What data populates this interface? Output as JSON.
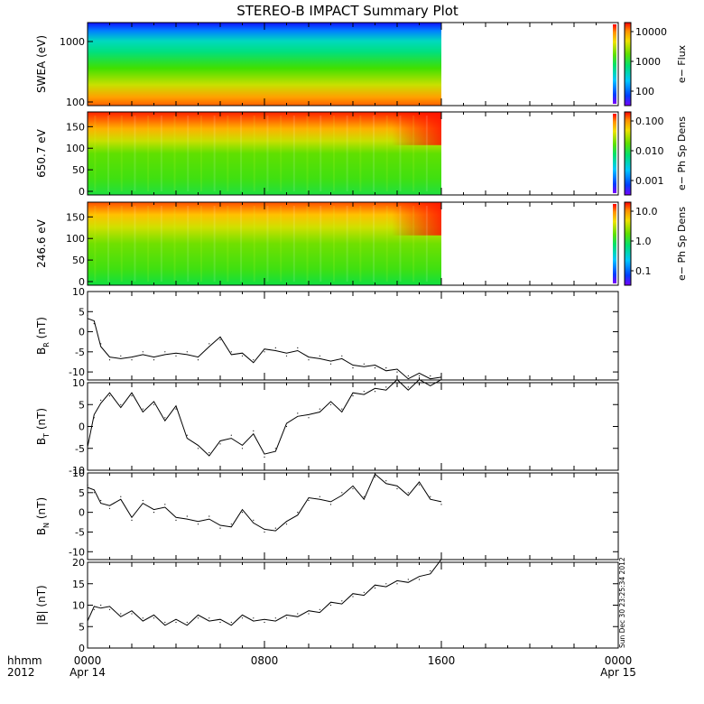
{
  "title": "STEREO-B IMPACT Summary Plot",
  "timestamp": "Sun Dec 30 23:25:34 2012",
  "x_axis": {
    "label_rows": [
      "hhmm",
      "2012"
    ],
    "ticks": [
      {
        "t": 0,
        "time": "0000",
        "date": "Apr 14"
      },
      {
        "t": 8,
        "time": "0800",
        "date": ""
      },
      {
        "t": 16,
        "time": "1600",
        "date": ""
      },
      {
        "t": 24,
        "time": "0000",
        "date": "Apr 15"
      }
    ],
    "range_hours": [
      0,
      24
    ]
  },
  "chart_data": [
    {
      "type": "heatmap",
      "ylabel": "SWEA (eV)",
      "ylog": true,
      "yticks": [
        "100",
        "1000"
      ],
      "colorbar": {
        "label": "e− Flux",
        "ticks": [
          "100",
          "1000",
          "10000"
        ]
      },
      "data_end_hour": 16,
      "description_colors": "high energy blue/cyan, low energy orange/red"
    },
    {
      "type": "heatmap",
      "ylabel": "650.7 eV",
      "yticks": [
        "0",
        "50",
        "100",
        "150"
      ],
      "ylim": [
        0,
        180
      ],
      "colorbar": {
        "label": "e− Ph Sp Dens",
        "ticks": [
          "0.001",
          "0.010",
          "0.100"
        ]
      },
      "data_end_hour": 16
    },
    {
      "type": "heatmap",
      "ylabel": "246.6 eV",
      "yticks": [
        "0",
        "50",
        "100",
        "150"
      ],
      "ylim": [
        0,
        180
      ],
      "colorbar": {
        "label": "e− Ph Sp Dens",
        "ticks": [
          "0.1",
          "1.0",
          "10.0"
        ]
      },
      "data_end_hour": 16
    },
    {
      "type": "line",
      "ylabel": "B",
      "ylabel_sub": "R",
      "yunit": "(nT)",
      "ylim": [
        -12,
        10
      ],
      "yticks": [
        "-10",
        "-5",
        "0",
        "5",
        "10"
      ],
      "x": [
        0,
        0.3,
        0.6,
        1,
        1.5,
        2,
        2.5,
        3,
        3.5,
        4,
        4.5,
        5,
        5.5,
        6,
        6.5,
        7,
        7.5,
        8,
        8.5,
        9,
        9.5,
        10,
        10.5,
        11,
        11.5,
        12,
        12.5,
        13,
        13.5,
        14,
        14.5,
        15,
        15.5,
        16
      ],
      "y": [
        4,
        2,
        -3,
        -7,
        -6,
        -7,
        -5,
        -7,
        -5,
        -6,
        -5,
        -7,
        -3,
        -2,
        -5,
        -6,
        -7,
        -5,
        -4,
        -6,
        -4,
        -7,
        -6,
        -8,
        -6,
        -9,
        -8,
        -9,
        -9,
        -10,
        -11,
        -11,
        -11,
        -12
      ]
    },
    {
      "type": "line",
      "ylabel": "B",
      "ylabel_sub": "T",
      "yunit": "(nT)",
      "ylim": [
        -10,
        10
      ],
      "yticks": [
        "-10",
        "-5",
        "0",
        "5",
        "10"
      ],
      "x": [
        0,
        0.3,
        0.6,
        1,
        1.5,
        2,
        2.5,
        3,
        3.5,
        4,
        4.5,
        5,
        5.5,
        6,
        6.5,
        7,
        7.5,
        8,
        8.5,
        9,
        9.5,
        10,
        10.5,
        11,
        11.5,
        12,
        12.5,
        13,
        13.5,
        14,
        14.5,
        15,
        15.5,
        16
      ],
      "y": [
        -4,
        2,
        6,
        7,
        5,
        7,
        4,
        5,
        2,
        4,
        -2,
        -5,
        -6,
        -4,
        -2,
        -5,
        -1,
        -7,
        -5,
        0,
        3,
        2,
        4,
        5,
        4,
        7,
        8,
        8,
        9,
        10,
        9,
        10,
        10,
        10
      ]
    },
    {
      "type": "line",
      "ylabel": "B",
      "ylabel_sub": "N",
      "yunit": "(nT)",
      "ylim": [
        -12,
        10
      ],
      "yticks": [
        "-10",
        "-5",
        "0",
        "5",
        "10"
      ],
      "x": [
        0,
        0.3,
        0.6,
        1,
        1.5,
        2,
        2.5,
        3,
        3.5,
        4,
        4.5,
        5,
        5.5,
        6,
        6.5,
        7,
        7.5,
        8,
        8.5,
        9,
        9.5,
        10,
        10.5,
        11,
        11.5,
        12,
        12.5,
        13,
        13.5,
        14,
        14.5,
        15,
        15.5,
        16
      ],
      "y": [
        7,
        5,
        3,
        1,
        4,
        -2,
        3,
        0,
        2,
        -2,
        -1,
        -3,
        -1,
        -4,
        -3,
        0,
        -2,
        -5,
        -4,
        -3,
        0,
        3,
        4,
        2,
        5,
        6,
        4,
        9,
        8,
        6,
        5,
        7,
        4,
        2
      ]
    },
    {
      "type": "line",
      "ylabel": "|B|",
      "yunit": "(nT)",
      "ylim": [
        0,
        20
      ],
      "yticks": [
        "0",
        "5",
        "10",
        "15",
        "20"
      ],
      "x": [
        0,
        0.3,
        0.6,
        1,
        1.5,
        2,
        2.5,
        3,
        3.5,
        4,
        4.5,
        5,
        5.5,
        6,
        6.5,
        7,
        7.5,
        8,
        8.5,
        9,
        9.5,
        10,
        10.5,
        11,
        11.5,
        12,
        12.5,
        13,
        13.5,
        14,
        14.5,
        15,
        15.5,
        16
      ],
      "y": [
        7,
        9,
        10,
        9,
        8,
        8,
        7,
        7,
        6,
        6,
        6,
        7,
        7,
        6,
        6,
        7,
        7,
        6,
        7,
        7,
        8,
        8,
        9,
        10,
        11,
        12,
        13,
        14,
        15,
        15,
        16,
        16,
        18,
        20
      ]
    }
  ]
}
